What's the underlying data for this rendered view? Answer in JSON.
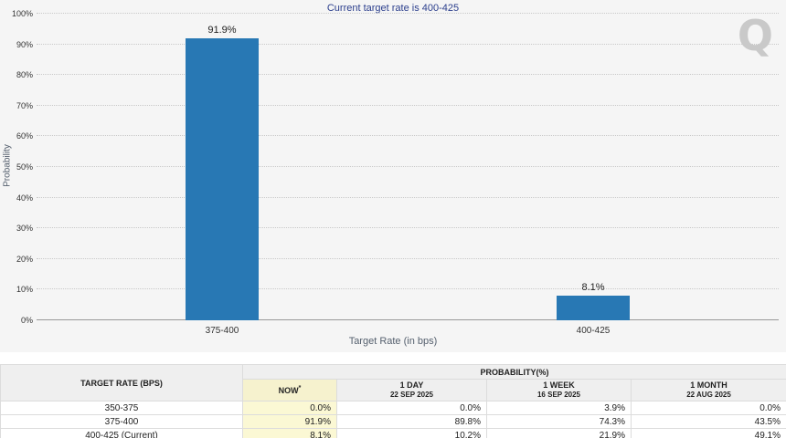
{
  "chart": {
    "title": "Current target rate is 400-425",
    "ylabel": "Probability",
    "xlabel": "Target Rate (in bps)",
    "watermark": "Q"
  },
  "chart_data": {
    "type": "bar",
    "categories": [
      "375-400",
      "400-425"
    ],
    "values": [
      91.9,
      8.1
    ],
    "value_labels": [
      "91.9%",
      "8.1%"
    ],
    "title": "Current target rate is 400-425",
    "xlabel": "Target Rate (in bps)",
    "ylabel": "Probability",
    "ylim": [
      0,
      100
    ],
    "ytick_step": 10,
    "grid": true,
    "legend": false,
    "bar_color": "#2878b4"
  },
  "table": {
    "col1_header": "TARGET RATE (BPS)",
    "group_header": "PROBABILITY(%)",
    "columns": [
      {
        "label": "NOW",
        "sup": "*",
        "sub": ""
      },
      {
        "label": "1 DAY",
        "sub": "22 SEP 2025"
      },
      {
        "label": "1 WEEK",
        "sub": "16 SEP 2025"
      },
      {
        "label": "1 MONTH",
        "sub": "22 AUG 2025"
      }
    ],
    "rows": [
      {
        "rate": "350-375",
        "values": [
          "0.0%",
          "0.0%",
          "3.9%",
          "0.0%"
        ]
      },
      {
        "rate": "375-400",
        "values": [
          "91.9%",
          "89.8%",
          "74.3%",
          "43.5%"
        ]
      },
      {
        "rate": "400-425 (Current)",
        "values": [
          "8.1%",
          "10.2%",
          "21.9%",
          "49.1%"
        ]
      }
    ]
  },
  "colors": {
    "bar": "#2878b4",
    "title": "#2b3e8c",
    "chart_bg": "#f5f5f5",
    "now_highlight": "#fbf8d4",
    "header_bg": "#efefef"
  }
}
